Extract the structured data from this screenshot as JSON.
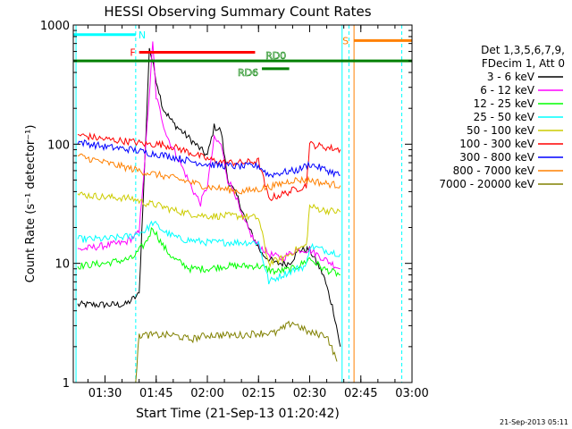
{
  "chart_data": {
    "type": "line",
    "title": "HESSI Observing Summary Count Rates",
    "xlabel": "Start Time (21-Sep-13 01:20:42)",
    "ylabel": "Count Rate (s⁻¹ detector⁻¹)",
    "yscale": "log",
    "ylim": [
      1,
      1000
    ],
    "xlim": [
      "01:20:42",
      "03:00:00"
    ],
    "x_ticks": [
      "01:30",
      "01:45",
      "02:00",
      "02:15",
      "02:30",
      "02:45",
      "03:00"
    ],
    "y_ticks": [
      "1",
      "10",
      "100",
      "1000"
    ],
    "grid": false,
    "legend_title": [
      "Det 1,3,5,6,7,9,",
      "FDecim 1, Att 0"
    ],
    "legend_position": "right",
    "footer": "21-Sep-2013 05:11",
    "series": [
      {
        "name": "3 - 6 keV",
        "color": "#000000",
        "points": [
          [
            "01:22",
            4.5
          ],
          [
            "01:36",
            4.5
          ],
          [
            "01:40",
            5.5
          ],
          [
            "01:42",
            120
          ],
          [
            "01:43",
            650
          ],
          [
            "01:45",
            350
          ],
          [
            "01:47",
            200
          ],
          [
            "01:50",
            150
          ],
          [
            "01:55",
            110
          ],
          [
            "02:00",
            80
          ],
          [
            "02:02",
            140
          ],
          [
            "02:04",
            130
          ],
          [
            "02:06",
            50
          ],
          [
            "02:09",
            35
          ],
          [
            "02:12",
            20
          ],
          [
            "02:16",
            12
          ],
          [
            "02:20",
            10
          ],
          [
            "02:24",
            10
          ],
          [
            "02:27",
            13
          ],
          [
            "02:30",
            13
          ],
          [
            "02:34",
            8
          ],
          [
            "02:37",
            4
          ],
          [
            "02:39",
            2
          ]
        ]
      },
      {
        "name": "6 - 12 keV",
        "color": "#ff00ff",
        "points": [
          [
            "01:22",
            13
          ],
          [
            "01:36",
            15
          ],
          [
            "01:40",
            18
          ],
          [
            "01:42",
            100
          ],
          [
            "01:44",
            700
          ],
          [
            "01:45",
            250
          ],
          [
            "01:48",
            120
          ],
          [
            "01:52",
            70
          ],
          [
            "01:56",
            40
          ],
          [
            "01:58",
            32
          ],
          [
            "02:00",
            45
          ],
          [
            "02:02",
            110
          ],
          [
            "02:04",
            100
          ],
          [
            "02:06",
            50
          ],
          [
            "02:08",
            40
          ],
          [
            "02:10",
            25
          ],
          [
            "02:14",
            15
          ],
          [
            "02:18",
            12
          ],
          [
            "02:22",
            11
          ],
          [
            "02:26",
            13
          ],
          [
            "02:30",
            13
          ],
          [
            "02:34",
            11
          ],
          [
            "02:39",
            9
          ]
        ]
      },
      {
        "name": "12 - 25 keV",
        "color": "#00ff00",
        "points": [
          [
            "01:22",
            9.5
          ],
          [
            "01:30",
            10
          ],
          [
            "01:38",
            11
          ],
          [
            "01:42",
            15
          ],
          [
            "01:44",
            20
          ],
          [
            "01:47",
            14
          ],
          [
            "01:50",
            11
          ],
          [
            "01:55",
            9
          ],
          [
            "02:00",
            9
          ],
          [
            "02:05",
            9.5
          ],
          [
            "02:10",
            9.5
          ],
          [
            "02:15",
            9.5
          ],
          [
            "02:20",
            8.5
          ],
          [
            "02:25",
            9
          ],
          [
            "02:28",
            10
          ],
          [
            "02:30",
            11
          ],
          [
            "02:34",
            9
          ],
          [
            "02:39",
            8
          ]
        ]
      },
      {
        "name": "25 - 50 keV",
        "color": "#00ffff",
        "points": [
          [
            "01:22",
            16
          ],
          [
            "01:30",
            16
          ],
          [
            "01:38",
            17
          ],
          [
            "01:42",
            19
          ],
          [
            "01:44",
            22
          ],
          [
            "01:48",
            18
          ],
          [
            "01:52",
            16
          ],
          [
            "02:00",
            15
          ],
          [
            "02:05",
            15
          ],
          [
            "02:10",
            15
          ],
          [
            "02:15",
            15
          ],
          [
            "02:18",
            7
          ],
          [
            "02:22",
            8
          ],
          [
            "02:26",
            9
          ],
          [
            "02:29",
            9.5
          ],
          [
            "02:30",
            14
          ],
          [
            "02:34",
            13
          ],
          [
            "02:39",
            12
          ]
        ]
      },
      {
        "name": "50 - 100 keV",
        "color": "#cccc00",
        "points": [
          [
            "01:22",
            38
          ],
          [
            "01:30",
            36
          ],
          [
            "01:38",
            35
          ],
          [
            "01:42",
            32
          ],
          [
            "01:45",
            31
          ],
          [
            "01:50",
            28
          ],
          [
            "01:55",
            26
          ],
          [
            "02:00",
            25
          ],
          [
            "02:05",
            25
          ],
          [
            "02:10",
            25
          ],
          [
            "02:15",
            24
          ],
          [
            "02:18",
            10
          ],
          [
            "02:22",
            11
          ],
          [
            "02:26",
            13
          ],
          [
            "02:29",
            14
          ],
          [
            "02:30",
            30
          ],
          [
            "02:34",
            28
          ],
          [
            "02:39",
            27
          ]
        ]
      },
      {
        "name": "100 - 300 keV",
        "color": "#ff0000",
        "points": [
          [
            "01:22",
            120
          ],
          [
            "01:30",
            110
          ],
          [
            "01:38",
            105
          ],
          [
            "01:42",
            100
          ],
          [
            "01:46",
            100
          ],
          [
            "01:50",
            95
          ],
          [
            "01:55",
            85
          ],
          [
            "02:00",
            75
          ],
          [
            "02:05",
            70
          ],
          [
            "02:10",
            70
          ],
          [
            "02:15",
            72
          ],
          [
            "02:18",
            35
          ],
          [
            "02:22",
            38
          ],
          [
            "02:26",
            42
          ],
          [
            "02:29",
            45
          ],
          [
            "02:30",
            100
          ],
          [
            "02:34",
            95
          ],
          [
            "02:39",
            90
          ]
        ]
      },
      {
        "name": "300 - 800 keV",
        "color": "#0000ff",
        "points": [
          [
            "01:22",
            105
          ],
          [
            "01:30",
            95
          ],
          [
            "01:38",
            90
          ],
          [
            "01:42",
            85
          ],
          [
            "01:46",
            82
          ],
          [
            "01:50",
            78
          ],
          [
            "01:55",
            72
          ],
          [
            "02:00",
            68
          ],
          [
            "02:05",
            66
          ],
          [
            "02:10",
            65
          ],
          [
            "02:15",
            66
          ],
          [
            "02:18",
            55
          ],
          [
            "02:22",
            58
          ],
          [
            "02:26",
            60
          ],
          [
            "02:30",
            68
          ],
          [
            "02:34",
            62
          ],
          [
            "02:39",
            55
          ]
        ]
      },
      {
        "name": "800 - 7000 keV",
        "color": "#ff8000",
        "points": [
          [
            "01:22",
            80
          ],
          [
            "01:30",
            70
          ],
          [
            "01:38",
            62
          ],
          [
            "01:42",
            58
          ],
          [
            "01:46",
            55
          ],
          [
            "01:50",
            52
          ],
          [
            "01:55",
            48
          ],
          [
            "02:00",
            44
          ],
          [
            "02:05",
            42
          ],
          [
            "02:10",
            40
          ],
          [
            "02:15",
            42
          ],
          [
            "02:20",
            45
          ],
          [
            "02:25",
            50
          ],
          [
            "02:30",
            50
          ],
          [
            "02:34",
            47
          ],
          [
            "02:39",
            45
          ]
        ]
      },
      {
        "name": "7000 - 20000 keV",
        "color": "#808000",
        "points": [
          [
            "01:39",
            1.0
          ],
          [
            "01:40",
            2.5
          ],
          [
            "01:45",
            2.5
          ],
          [
            "01:50",
            2.5
          ],
          [
            "01:55",
            2.3
          ],
          [
            "02:00",
            2.5
          ],
          [
            "02:05",
            2.5
          ],
          [
            "02:10",
            2.5
          ],
          [
            "02:15",
            2.6
          ],
          [
            "02:20",
            2.6
          ],
          [
            "02:25",
            3.2
          ],
          [
            "02:30",
            2.6
          ],
          [
            "02:35",
            2.5
          ],
          [
            "02:38",
            1.5
          ]
        ]
      }
    ],
    "annotations": [
      {
        "label": "N",
        "color": "#00ffff",
        "start": "01:20:42",
        "end": "01:39",
        "y": 830
      },
      {
        "label": "F",
        "color": "#ff0000",
        "start": "01:40",
        "end": "02:14",
        "y": 590
      },
      {
        "label": "RD0",
        "color": "#008000",
        "start": "01:20:42",
        "end": "03:00",
        "y": 500
      },
      {
        "label": "RD6",
        "color": "#008000",
        "start": "02:16",
        "end": "02:24",
        "y": 430
      },
      {
        "label": "S",
        "color": "#ff8000",
        "start": "02:43",
        "end": "03:00",
        "y": 740
      }
    ],
    "vertical_lines": [
      {
        "time": "01:21:30",
        "color": "#00ffff",
        "style": "solid"
      },
      {
        "time": "01:39",
        "color": "#00ffff",
        "style": "dashed"
      },
      {
        "time": "02:39:30",
        "color": "#00ffff",
        "style": "solid"
      },
      {
        "time": "02:41:30",
        "color": "#00ffff",
        "style": "dashed"
      },
      {
        "time": "02:43",
        "color": "#ff8000",
        "style": "solid"
      },
      {
        "time": "02:57",
        "color": "#00ffff",
        "style": "dashed"
      }
    ]
  }
}
